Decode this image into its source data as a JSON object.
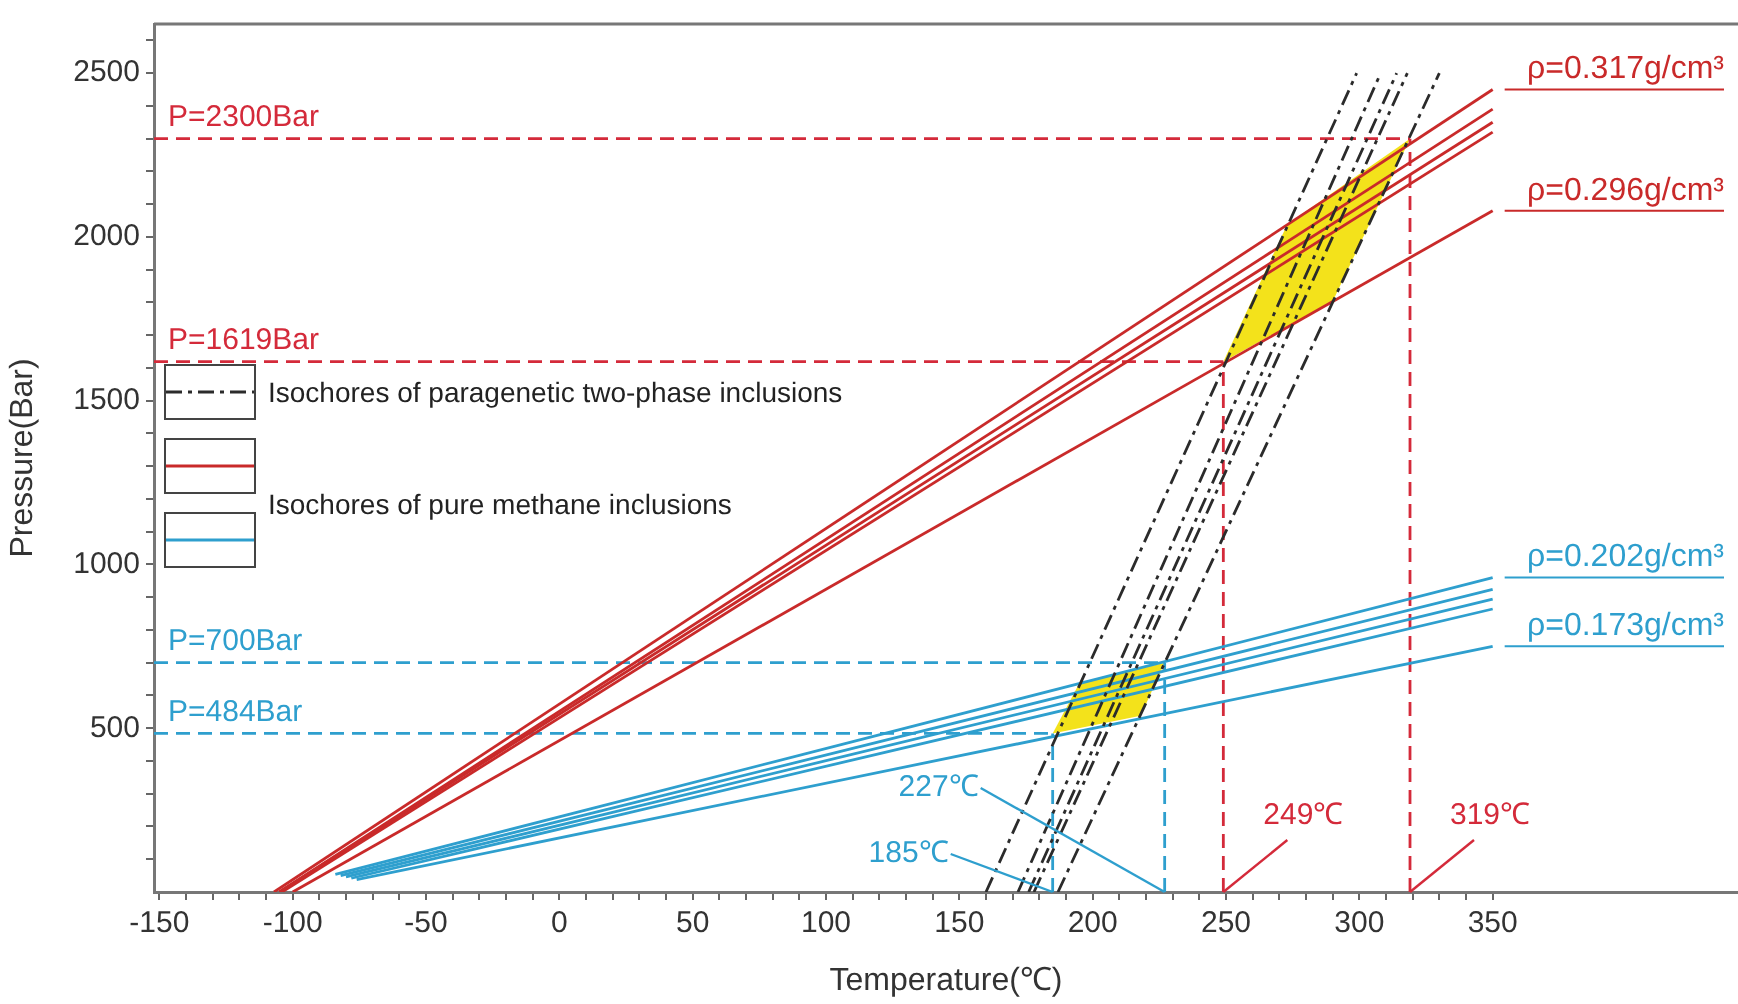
{
  "chart_data": {
    "type": "line",
    "xlabel": "Temperature(℃)",
    "ylabel": "Pressure(Bar)",
    "xlim": [
      -152,
      442
    ],
    "ylim": [
      0,
      2650
    ],
    "xticks": [
      -150,
      {
        "value": -140,
        "label": null
      },
      {
        "value": -130,
        "label": null
      },
      {
        "value": -120,
        "label": null
      },
      {
        "value": -110,
        "label": null
      },
      -100,
      {
        "value": -90,
        "label": null
      },
      {
        "value": -80,
        "label": null
      },
      {
        "value": -70,
        "label": null
      },
      {
        "value": -60,
        "label": null
      },
      -50,
      {
        "value": -40,
        "label": null
      },
      {
        "value": -30,
        "label": null
      },
      {
        "value": -20,
        "label": null
      },
      {
        "value": -10,
        "label": null
      },
      0,
      {
        "value": 10,
        "label": null
      },
      {
        "value": 20,
        "label": null
      },
      {
        "value": 30,
        "label": null
      },
      {
        "value": 40,
        "label": null
      },
      50,
      {
        "value": 60,
        "label": null
      },
      {
        "value": 70,
        "label": null
      },
      {
        "value": 80,
        "label": null
      },
      {
        "value": 90,
        "label": null
      },
      100,
      {
        "value": 110,
        "label": null
      },
      {
        "value": 120,
        "label": null
      },
      {
        "value": 130,
        "label": null
      },
      {
        "value": 140,
        "label": null
      },
      150,
      {
        "value": 160,
        "label": null
      },
      {
        "value": 170,
        "label": null
      },
      {
        "value": 180,
        "label": null
      },
      {
        "value": 190,
        "label": null
      },
      200,
      {
        "value": 210,
        "label": null
      },
      {
        "value": 220,
        "label": null
      },
      {
        "value": 230,
        "label": null
      },
      {
        "value": 240,
        "label": null
      },
      250,
      {
        "value": 260,
        "label": null
      },
      {
        "value": 270,
        "label": null
      },
      {
        "value": 280,
        "label": null
      },
      {
        "value": 290,
        "label": null
      },
      300,
      {
        "value": 310,
        "label": null
      },
      {
        "value": 320,
        "label": null
      },
      {
        "value": 330,
        "label": null
      },
      {
        "value": 340,
        "label": null
      },
      350
    ],
    "yticks": [
      {
        "value": 100,
        "label": null
      },
      {
        "value": 200,
        "label": null
      },
      {
        "value": 300,
        "label": null
      },
      {
        "value": 400,
        "label": null
      },
      500,
      {
        "value": 600,
        "label": null
      },
      {
        "value": 700,
        "label": null
      },
      {
        "value": 800,
        "label": null
      },
      {
        "value": 900,
        "label": null
      },
      1000,
      {
        "value": 1100,
        "label": null
      },
      {
        "value": 1200,
        "label": null
      },
      {
        "value": 1300,
        "label": null
      },
      {
        "value": 1400,
        "label": null
      },
      1500,
      {
        "value": 1600,
        "label": null
      },
      {
        "value": 1700,
        "label": null
      },
      {
        "value": 1800,
        "label": null
      },
      {
        "value": 1900,
        "label": null
      },
      2000,
      {
        "value": 2100,
        "label": null
      },
      {
        "value": 2200,
        "label": null
      },
      {
        "value": 2300,
        "label": null
      },
      {
        "value": 2400,
        "label": null
      },
      2500,
      {
        "value": 2600,
        "label": null
      }
    ],
    "grid": false,
    "legend": "left",
    "marker": "none",
    "series": [
      {
        "type": "area",
        "color": "#f3e21b",
        "x": [
          249,
          273,
          319,
          290
        ],
        "values": [
          1619,
          2039,
          2300,
          1803
        ]
      },
      {
        "type": "area",
        "color": "#f3e21b",
        "x": [
          185,
          195,
          227,
          218
        ],
        "values": [
          484,
          637,
          700,
          538
        ]
      },
      {
        "name": "Isochores of paragenetic two-phase inclusions",
        "color": "#2b2b2b",
        "line_style": "dashdot",
        "x": [
          160,
          299
        ],
        "values": [
          0,
          2500
        ]
      },
      {
        "color": "#2b2b2b",
        "line_style": "dashdot",
        "x": [
          172,
          308
        ],
        "values": [
          0,
          2500
        ]
      },
      {
        "color": "#2b2b2b",
        "line_style": "dashdot",
        "x": [
          176,
          314
        ],
        "values": [
          0,
          2500
        ]
      },
      {
        "color": "#2b2b2b",
        "line_style": "dashdot",
        "x": [
          178,
          318
        ],
        "values": [
          0,
          2500
        ]
      },
      {
        "color": "#2b2b2b",
        "line_style": "dashdot",
        "x": [
          187,
          330
        ],
        "values": [
          0,
          2500
        ]
      },
      {
        "name": "Isochores of pure methane inclusions",
        "color": "#c92a2a",
        "x": [
          -107,
          350
        ],
        "values": [
          0,
          2450
        ]
      },
      {
        "color": "#c92a2a",
        "x": [
          -105,
          350
        ],
        "values": [
          0,
          2390
        ]
      },
      {
        "color": "#c92a2a",
        "x": [
          -105,
          350
        ],
        "values": [
          0,
          2350
        ]
      },
      {
        "color": "#c92a2a",
        "x": [
          -104,
          350
        ],
        "values": [
          0,
          2320
        ]
      },
      {
        "color": "#c92a2a",
        "x": [
          -100,
          350
        ],
        "values": [
          0,
          2080
        ]
      },
      {
        "color": "#2e9fce",
        "x": [
          -84,
          350
        ],
        "values": [
          54,
          960
        ]
      },
      {
        "color": "#2e9fce",
        "x": [
          -82,
          350
        ],
        "values": [
          50,
          924
        ]
      },
      {
        "color": "#2e9fce",
        "x": [
          -80,
          350
        ],
        "values": [
          46,
          894
        ]
      },
      {
        "color": "#2e9fce",
        "x": [
          -78,
          350
        ],
        "values": [
          42,
          864
        ]
      },
      {
        "color": "#2e9fce",
        "x": [
          -76,
          350
        ],
        "values": [
          38,
          750
        ]
      },
      {
        "color": "#d42a3a",
        "line_style": "dashed",
        "x": [
          -152,
          319
        ],
        "values": [
          2300,
          2300
        ]
      },
      {
        "color": "#d42a3a",
        "line_style": "dashed",
        "x": [
          -152,
          249
        ],
        "values": [
          1619,
          1619
        ]
      },
      {
        "color": "#d42a3a",
        "line_style": "dashed",
        "x": [
          249,
          249
        ],
        "values": [
          0,
          1619
        ]
      },
      {
        "color": "#d42a3a",
        "line_style": "dashed",
        "x": [
          319,
          319
        ],
        "values": [
          0,
          2300
        ]
      },
      {
        "color": "#2e9fce",
        "line_style": "dashed",
        "x": [
          -152,
          227
        ],
        "values": [
          700,
          700
        ]
      },
      {
        "color": "#2e9fce",
        "line_style": "dashed",
        "x": [
          -152,
          185
        ],
        "values": [
          484,
          484
        ]
      },
      {
        "color": "#2e9fce",
        "line_style": "dashed",
        "x": [
          227,
          227
        ],
        "values": [
          0,
          700
        ]
      },
      {
        "color": "#2e9fce",
        "line_style": "dashed",
        "x": [
          185,
          185
        ],
        "values": [
          0,
          484
        ]
      }
    ],
    "annotations": [
      {
        "text": "P=2300Bar",
        "x": -152,
        "y": 2300
      },
      {
        "text": "P=1619Bar",
        "x": -152,
        "y": 1619
      },
      {
        "text": "P=700Bar",
        "x": -152,
        "y": 700
      },
      {
        "text": "P=484Bar",
        "x": -152,
        "y": 484
      },
      {
        "text": "ρ=0.317g/cm³",
        "x": 350,
        "y": 2450
      },
      {
        "text": "ρ=0.296g/cm³",
        "x": 350,
        "y": 2080
      },
      {
        "text": "ρ=0.202g/cm³",
        "x": 350,
        "y": 960
      },
      {
        "text": "ρ=0.173g/cm³",
        "x": 350,
        "y": 750
      },
      {
        "text": "227℃",
        "x": 227,
        "y": 0
      },
      {
        "text": "185℃",
        "x": 185,
        "y": 0
      },
      {
        "text": "249℃",
        "x": 249,
        "y": 0
      },
      {
        "text": "319℃",
        "x": 319,
        "y": 0
      }
    ]
  }
}
